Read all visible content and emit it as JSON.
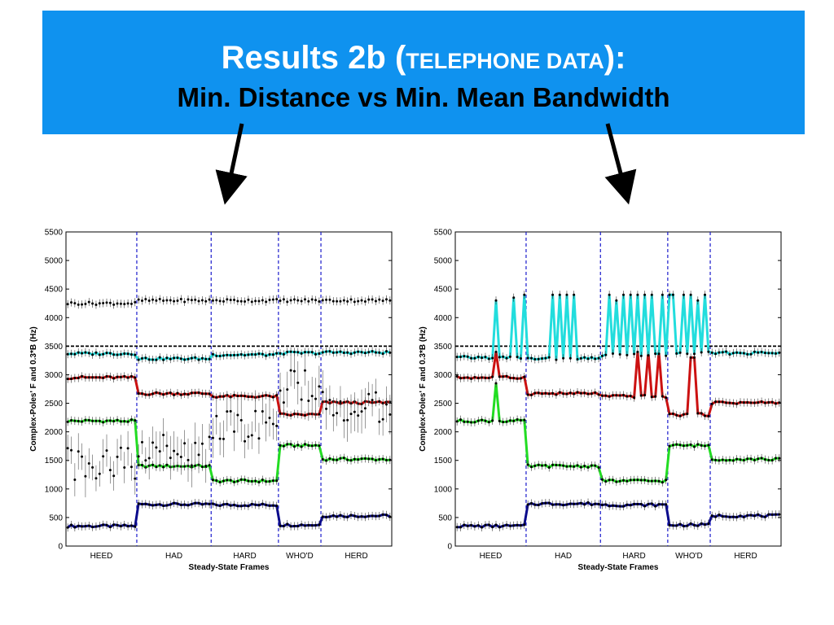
{
  "slide": {
    "title_main": "Results 2b (",
    "title_smallcaps": "TELEPHONE DATA",
    "title_end": "):",
    "subtitle": "Min. Distance vs Min. Mean Bandwidth"
  },
  "colors": {
    "banner": "#0f92ef",
    "series": [
      "#0a0a8c",
      "#22dd22",
      "#cc1111",
      "#22dddd",
      "#111111"
    ],
    "segment_lines": "#1a1acc",
    "threshold": "#000000"
  },
  "chart_data": [
    {
      "type": "line",
      "panel": "left",
      "ylabel": "Complex-Poles' F and 0.3*B (Hz)",
      "xlabel": "Steady-State Frames",
      "ylim": [
        0,
        5500
      ],
      "yticks": [
        0,
        500,
        1000,
        1500,
        2000,
        2500,
        3000,
        3500,
        4000,
        4500,
        5000,
        5500
      ],
      "categories": [
        "HEED",
        "HAD",
        "HARD",
        "WHO'D",
        "HERD"
      ],
      "segment_frames": [
        20,
        21,
        19,
        12,
        20
      ],
      "threshold": 3500,
      "series": [
        {
          "color": "#0a0a8c",
          "segment_levels": [
            350,
            730,
            720,
            370,
            530
          ],
          "spikes": []
        },
        {
          "color": "#22dd22",
          "segment_levels": [
            2190,
            1400,
            1140,
            1760,
            1520
          ],
          "spikes": []
        },
        {
          "color": "#cc1111",
          "segment_levels": [
            2950,
            2670,
            2620,
            2300,
            2510
          ],
          "spikes": []
        },
        {
          "color": "#22dddd",
          "segment_levels": [
            3370,
            3280,
            3350,
            3380,
            3390
          ],
          "spikes": []
        },
        {
          "color": "#111111",
          "segment_levels": [
            4250,
            4300,
            4300,
            4300,
            4300
          ],
          "spikes": []
        }
      ],
      "scatter_band": {
        "segment_levels": [
          1450,
          1700,
          2100,
          2800,
          2450
        ],
        "error": 350
      }
    },
    {
      "type": "line",
      "panel": "right",
      "ylabel": "Complex-Poles' F and 0.3*B (Hz)",
      "xlabel": "Steady-State Frames",
      "ylim": [
        0,
        5500
      ],
      "yticks": [
        0,
        500,
        1000,
        1500,
        2000,
        2500,
        3000,
        3500,
        4000,
        4500,
        5000,
        5500
      ],
      "categories": [
        "HEED",
        "HAD",
        "HARD",
        "WHO'D",
        "HERD"
      ],
      "segment_frames": [
        20,
        21,
        19,
        12,
        20
      ],
      "threshold": 3500,
      "series": [
        {
          "color": "#0a0a8c",
          "segment_levels": [
            350,
            740,
            720,
            370,
            530
          ],
          "spikes": []
        },
        {
          "color": "#22dd22",
          "segment_levels": [
            2190,
            1400,
            1140,
            1760,
            1520
          ],
          "spikes": [
            [
              11,
              2850
            ]
          ]
        },
        {
          "color": "#cc1111",
          "segment_levels": [
            2950,
            2670,
            2620,
            2300,
            2510
          ],
          "spikes": [
            [
              11,
              3400
            ],
            [
              51,
              3400
            ],
            [
              54,
              3400
            ],
            [
              57,
              3400
            ],
            [
              66,
              3300
            ],
            [
              67,
              3300
            ]
          ]
        },
        {
          "color": "#22dddd",
          "segment_levels": [
            3300,
            3280,
            3350,
            3380,
            3380
          ],
          "spikes": [
            [
              11,
              4300
            ],
            [
              16,
              4350
            ],
            [
              19,
              4400
            ],
            [
              27,
              4400
            ],
            [
              29,
              4400
            ],
            [
              31,
              4400
            ],
            [
              33,
              4400
            ],
            [
              43,
              4400
            ],
            [
              45,
              4300
            ],
            [
              47,
              4400
            ],
            [
              49,
              4400
            ],
            [
              51,
              4400
            ],
            [
              53,
              4400
            ],
            [
              55,
              4400
            ],
            [
              58,
              4400
            ],
            [
              60,
              4400
            ],
            [
              61,
              4400
            ],
            [
              64,
              4400
            ],
            [
              66,
              4400
            ],
            [
              68,
              4300
            ],
            [
              70,
              4400
            ]
          ]
        }
      ],
      "scatter_band": null
    }
  ]
}
